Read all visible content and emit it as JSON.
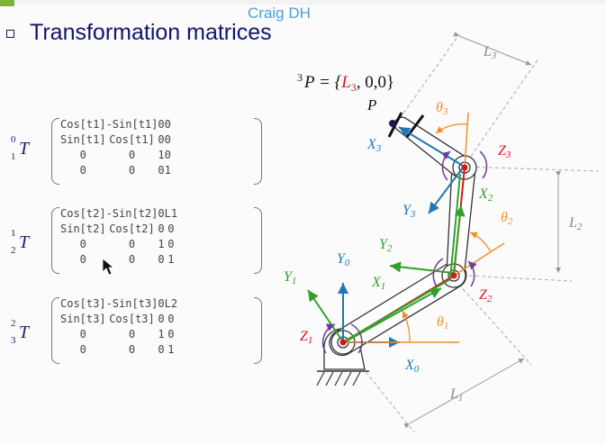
{
  "header": {
    "brand": "Craig DH",
    "title": "Transformation matrices"
  },
  "colors": {
    "title": "#14146e",
    "brand": "#4b9fdc",
    "red": "#d7191c",
    "green": "#33a02c",
    "blue": "#1f78b4",
    "orange": "#f28e2b",
    "purple": "#6a3d9a"
  },
  "matrices": [
    {
      "label": {
        "super": "0",
        "sub": "1",
        "symbol": "T"
      },
      "rows": [
        [
          "Cos[t1]",
          "-Sin[t1]",
          "0",
          "0"
        ],
        [
          "Sin[t1]",
          "Cos[t1]",
          "0",
          "0"
        ],
        [
          "0",
          "0",
          "1",
          "0"
        ],
        [
          "0",
          "0",
          "0",
          "1"
        ]
      ]
    },
    {
      "label": {
        "super": "1",
        "sub": "2",
        "symbol": "T"
      },
      "rows": [
        [
          "Cos[t2]",
          "-Sin[t2]",
          "0",
          "L1"
        ],
        [
          "Sin[t2]",
          "Cos[t2]",
          "0",
          "0"
        ],
        [
          "0",
          "0",
          "1",
          "0"
        ],
        [
          "0",
          "0",
          "0",
          "1"
        ]
      ]
    },
    {
      "label": {
        "super": "2",
        "sub": "3",
        "symbol": "T"
      },
      "rows": [
        [
          "Cos[t3]",
          "-Sin[t3]",
          "0",
          "L2"
        ],
        [
          "Sin[t3]",
          "Cos[t3]",
          "0",
          "0"
        ],
        [
          "0",
          "0",
          "1",
          "0"
        ],
        [
          "0",
          "0",
          "0",
          "1"
        ]
      ]
    }
  ],
  "diagram": {
    "point_equation": {
      "super": "3",
      "lhs": "P = {",
      "L": "L",
      "Lsub": "3",
      "rest": ", 0,0}"
    },
    "P": "P",
    "theta": {
      "t1": {
        "sym": "θ",
        "sub": "1"
      },
      "t2": {
        "sym": "θ",
        "sub": "2"
      },
      "t3": {
        "sym": "θ",
        "sub": "3"
      }
    },
    "lengths": {
      "L1": {
        "sym": "L",
        "sub": "1"
      },
      "L2": {
        "sym": "L",
        "sub": "2"
      },
      "L3": {
        "sym": "L",
        "sub": "3"
      }
    },
    "axes": {
      "X0": {
        "sym": "X",
        "sub": "0"
      },
      "Y0": {
        "sym": "Y",
        "sub": "0"
      },
      "X1": {
        "sym": "X",
        "sub": "1"
      },
      "Y1": {
        "sym": "Y",
        "sub": "1"
      },
      "Z1": {
        "sym": "Z",
        "sub": "1"
      },
      "X2": {
        "sym": "X",
        "sub": "2"
      },
      "Y2": {
        "sym": "Y",
        "sub": "2"
      },
      "Z2": {
        "sym": "Z",
        "sub": "2"
      },
      "X3": {
        "sym": "X",
        "sub": "3"
      },
      "Y3": {
        "sym": "Y",
        "sub": "3"
      },
      "Z3": {
        "sym": "Z",
        "sub": "3"
      }
    }
  }
}
